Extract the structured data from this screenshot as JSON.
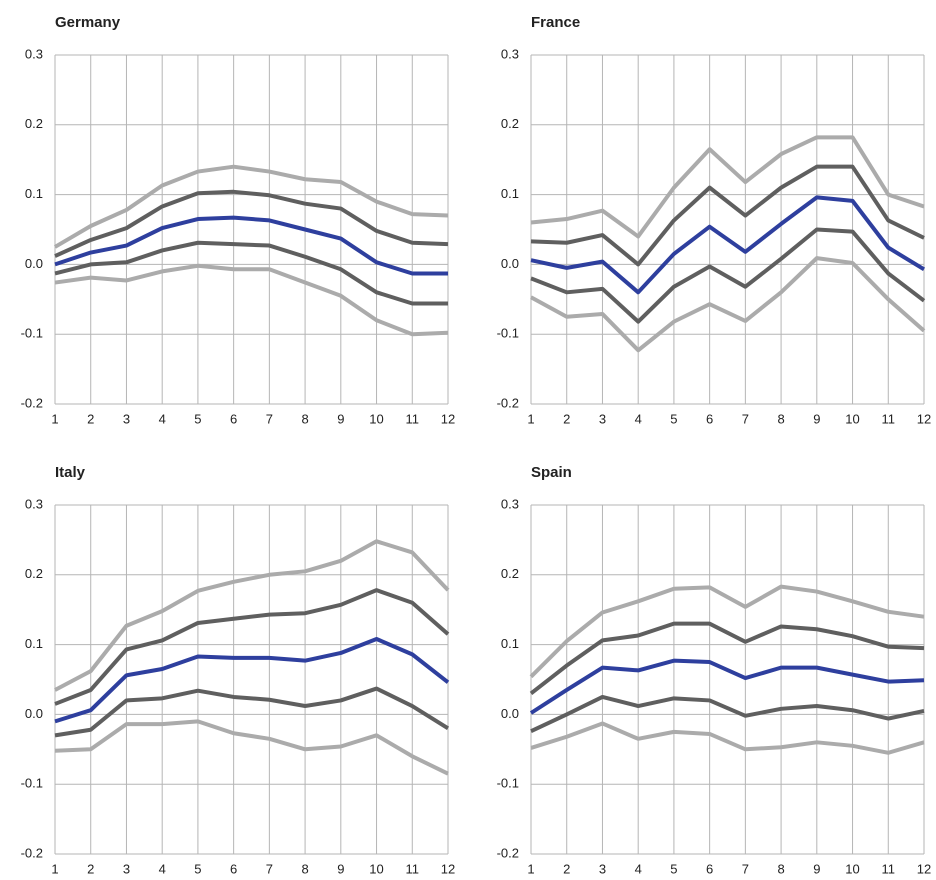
{
  "chart_data": [
    {
      "type": "line",
      "title": "Germany",
      "x": [
        1,
        2,
        3,
        4,
        5,
        6,
        7,
        8,
        9,
        10,
        11,
        12
      ],
      "xlim": [
        1,
        12
      ],
      "xticks": [
        1,
        2,
        3,
        4,
        5,
        6,
        7,
        8,
        9,
        10,
        11,
        12
      ],
      "ylim": [
        -0.2,
        0.3
      ],
      "yticks": [
        -0.2,
        -0.1,
        {
          "value": 0,
          "label": "0.0"
        },
        0.1,
        0.2,
        0.3
      ],
      "grid": true,
      "series": [
        {
          "color": "#ababab",
          "values": [
            0.025,
            0.055,
            0.078,
            0.113,
            0.133,
            0.14,
            0.133,
            0.122,
            0.118,
            0.09,
            0.072,
            0.07
          ]
        },
        {
          "color": "#5f5f5f",
          "values": [
            0.012,
            0.035,
            0.052,
            0.083,
            0.102,
            0.104,
            0.099,
            0.087,
            0.08,
            0.048,
            0.031,
            0.029
          ]
        },
        {
          "color": "#2e3f9e",
          "values": [
            0,
            0.017,
            0.027,
            0.052,
            0.065,
            0.067,
            0.063,
            0.05,
            0.037,
            0.003,
            -0.013,
            -0.013
          ]
        },
        {
          "color": "#5f5f5f",
          "values": [
            -0.013,
            0,
            0.003,
            0.02,
            0.031,
            0.029,
            0.027,
            0.011,
            -0.007,
            -0.04,
            -0.056,
            -0.056
          ]
        },
        {
          "color": "#ababab",
          "values": [
            -0.026,
            -0.019,
            -0.023,
            -0.01,
            -0.002,
            -0.007,
            -0.007,
            -0.026,
            -0.045,
            -0.08,
            -0.1,
            -0.098
          ]
        }
      ]
    },
    {
      "type": "line",
      "title": "France",
      "x": [
        1,
        2,
        3,
        4,
        5,
        6,
        7,
        8,
        9,
        10,
        11,
        12
      ],
      "xlim": [
        1,
        12
      ],
      "xticks": [
        1,
        2,
        3,
        4,
        5,
        6,
        7,
        8,
        9,
        10,
        11,
        12
      ],
      "ylim": [
        -0.2,
        0.3
      ],
      "yticks": [
        -0.2,
        -0.1,
        {
          "value": 0,
          "label": "0.0"
        },
        0.1,
        0.2,
        0.3
      ],
      "grid": true,
      "series": [
        {
          "color": "#ababab",
          "values": [
            0.06,
            0.065,
            0.077,
            0.04,
            0.11,
            0.165,
            0.118,
            0.158,
            0.182,
            0.182,
            0.1,
            0.083
          ]
        },
        {
          "color": "#5f5f5f",
          "values": [
            0.033,
            0.031,
            0.042,
            0,
            0.063,
            0.11,
            0.07,
            0.11,
            0.14,
            0.14,
            0.063,
            0.038
          ]
        },
        {
          "color": "#2e3f9e",
          "values": [
            0.006,
            -0.005,
            0.004,
            -0.04,
            0.015,
            0.054,
            0.018,
            0.058,
            0.096,
            0.091,
            0.024,
            -0.007
          ]
        },
        {
          "color": "#5f5f5f",
          "values": [
            -0.02,
            -0.04,
            -0.035,
            -0.082,
            -0.032,
            -0.003,
            -0.032,
            0.008,
            0.05,
            0.047,
            -0.013,
            -0.052
          ]
        },
        {
          "color": "#ababab",
          "values": [
            -0.047,
            -0.075,
            -0.071,
            -0.123,
            -0.082,
            -0.057,
            -0.081,
            -0.04,
            0.009,
            0.002,
            -0.05,
            -0.095
          ]
        }
      ]
    },
    {
      "type": "line",
      "title": "Italy",
      "x": [
        1,
        2,
        3,
        4,
        5,
        6,
        7,
        8,
        9,
        10,
        11,
        12
      ],
      "xlim": [
        1,
        12
      ],
      "xticks": [
        1,
        2,
        3,
        4,
        5,
        6,
        7,
        8,
        9,
        10,
        11,
        12
      ],
      "ylim": [
        -0.2,
        0.3
      ],
      "yticks": [
        -0.2,
        -0.1,
        {
          "value": 0,
          "label": "0.0"
        },
        0.1,
        0.2,
        0.3
      ],
      "grid": true,
      "series": [
        {
          "color": "#ababab",
          "values": [
            0.035,
            0.062,
            0.127,
            0.148,
            0.177,
            0.19,
            0.2,
            0.205,
            0.22,
            0.248,
            0.232,
            0.178
          ]
        },
        {
          "color": "#5f5f5f",
          "values": [
            0.015,
            0.035,
            0.093,
            0.106,
            0.131,
            0.137,
            0.143,
            0.145,
            0.157,
            0.178,
            0.16,
            0.115
          ]
        },
        {
          "color": "#2e3f9e",
          "values": [
            -0.01,
            0.006,
            0.056,
            0.065,
            0.083,
            0.081,
            0.081,
            0.077,
            0.088,
            0.108,
            0.086,
            0.046
          ]
        },
        {
          "color": "#5f5f5f",
          "values": [
            -0.03,
            -0.022,
            0.02,
            0.023,
            0.034,
            0.025,
            0.021,
            0.012,
            0.02,
            0.037,
            0.012,
            -0.02
          ]
        },
        {
          "color": "#ababab",
          "values": [
            -0.052,
            -0.05,
            -0.014,
            -0.014,
            -0.01,
            -0.027,
            -0.035,
            -0.05,
            -0.046,
            -0.03,
            -0.06,
            -0.085
          ]
        }
      ]
    },
    {
      "type": "line",
      "title": "Spain",
      "x": [
        1,
        2,
        3,
        4,
        5,
        6,
        7,
        8,
        9,
        10,
        11,
        12
      ],
      "xlim": [
        1,
        12
      ],
      "xticks": [
        1,
        2,
        3,
        4,
        5,
        6,
        7,
        8,
        9,
        10,
        11,
        12
      ],
      "ylim": [
        -0.2,
        0.3
      ],
      "yticks": [
        -0.2,
        -0.1,
        {
          "value": 0,
          "label": "0.0"
        },
        0.1,
        0.2,
        0.3
      ],
      "grid": true,
      "series": [
        {
          "color": "#ababab",
          "values": [
            0.054,
            0.105,
            0.146,
            0.162,
            0.18,
            0.182,
            0.154,
            0.183,
            0.176,
            0.162,
            0.147,
            0.14
          ]
        },
        {
          "color": "#5f5f5f",
          "values": [
            0.03,
            0.07,
            0.106,
            0.113,
            0.13,
            0.13,
            0.104,
            0.126,
            0.122,
            0.112,
            0.097,
            0.095
          ]
        },
        {
          "color": "#2e3f9e",
          "values": [
            0.002,
            0.035,
            0.067,
            0.063,
            0.077,
            0.075,
            0.052,
            0.067,
            0.067,
            0.057,
            0.047,
            0.049
          ]
        },
        {
          "color": "#5f5f5f",
          "values": [
            -0.024,
            0,
            0.025,
            0.012,
            0.023,
            0.02,
            -0.002,
            0.008,
            0.012,
            0.006,
            -0.006,
            0.005
          ]
        },
        {
          "color": "#ababab",
          "values": [
            -0.048,
            -0.032,
            -0.013,
            -0.035,
            -0.025,
            -0.028,
            -0.05,
            -0.047,
            -0.04,
            -0.045,
            -0.055,
            -0.04
          ]
        }
      ]
    }
  ]
}
